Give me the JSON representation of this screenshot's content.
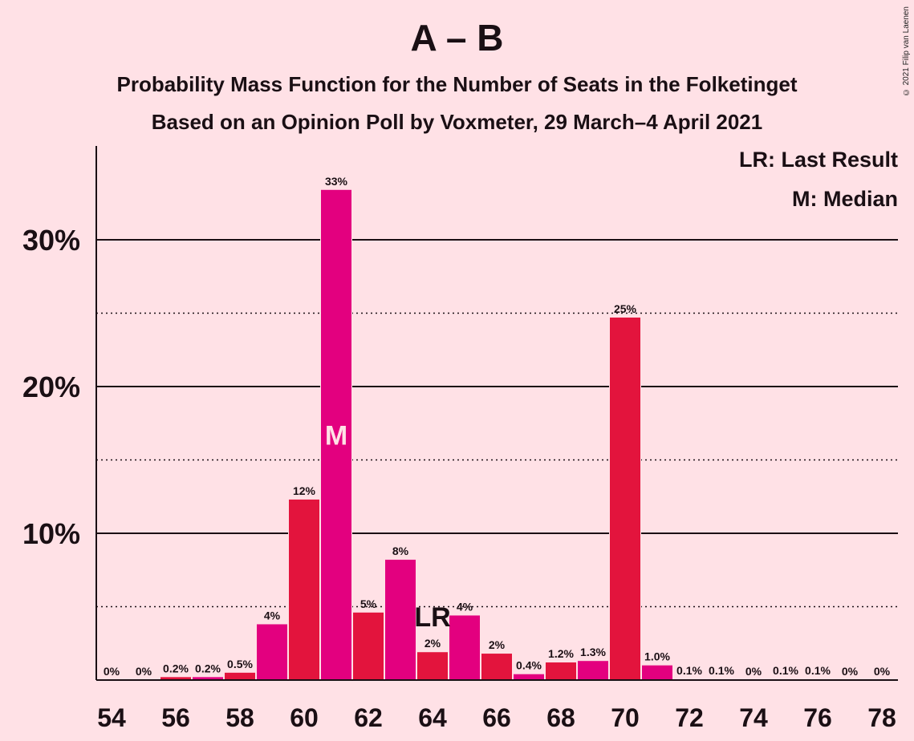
{
  "title": "A – B",
  "subtitle1": "Probability Mass Function for the Number of Seats in the Folketinget",
  "subtitle2": "Based on an Opinion Poll by Voxmeter, 29 March–4 April 2021",
  "copyright": "© 2021 Filip van Laenen",
  "legend": {
    "lr": "LR: Last Result",
    "m": "M: Median"
  },
  "colors": {
    "background": "#FFE1E6",
    "bar_red": "#E3143D",
    "bar_magenta": "#E3007F"
  },
  "chart_data": {
    "type": "bar",
    "x": [
      54,
      55,
      56,
      57,
      58,
      59,
      60,
      61,
      62,
      63,
      64,
      65,
      66,
      67,
      68,
      69,
      70,
      71,
      72,
      73,
      74,
      75,
      76,
      77,
      78
    ],
    "values": [
      0,
      0,
      0.2,
      0.2,
      0.5,
      3.8,
      12.3,
      33.4,
      4.6,
      8.2,
      1.9,
      4.4,
      1.8,
      0.4,
      1.2,
      1.3,
      24.7,
      1.0,
      0.05,
      0.05,
      0,
      0.05,
      0.05,
      0,
      0
    ],
    "labels": [
      "0%",
      "0%",
      "0.2%",
      "0.2%",
      "0.5%",
      "4%",
      "12%",
      "33%",
      "5%",
      "8%",
      "2%",
      "4%",
      "2%",
      "0.4%",
      "1.2%",
      "1.3%",
      "25%",
      "1.0%",
      "0.1%",
      "0.1%",
      "0%",
      "0.1%",
      "0.1%",
      "0%",
      "0%"
    ],
    "bar_colors": [
      "red",
      "magenta",
      "red",
      "magenta",
      "red",
      "magenta",
      "red",
      "magenta",
      "red",
      "magenta",
      "red",
      "magenta",
      "red",
      "magenta",
      "red",
      "magenta",
      "red",
      "magenta",
      "red",
      "magenta",
      "red",
      "magenta",
      "red",
      "magenta",
      "red"
    ],
    "x_tick_labels": [
      "54",
      "56",
      "58",
      "60",
      "62",
      "64",
      "66",
      "68",
      "70",
      "72",
      "74",
      "76",
      "78"
    ],
    "y_tick_labels": [
      "10%",
      "20%",
      "30%"
    ],
    "y_ticks": [
      10,
      20,
      30
    ],
    "y_minor_ticks": [
      5,
      15,
      25
    ],
    "ylim": [
      0,
      36
    ],
    "median_seat": 61,
    "median_marker": "M",
    "last_result_seat": 64,
    "last_result_marker": "LR"
  }
}
